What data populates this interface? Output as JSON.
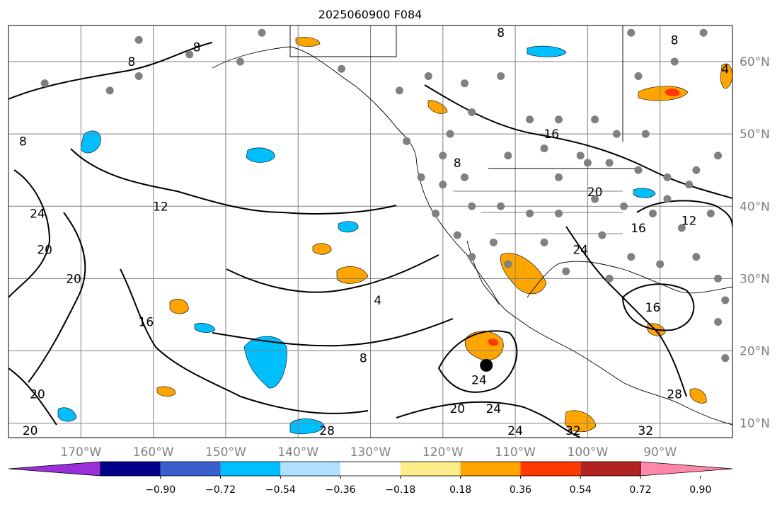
{
  "title": "2025060900 F084",
  "map": {
    "lon_range": [
      -180,
      -80
    ],
    "lat_range": [
      8,
      65
    ],
    "gridlines": true,
    "lon_ticks": [
      {
        "lon": -170,
        "label": "170°W"
      },
      {
        "lon": -160,
        "label": "160°W"
      },
      {
        "lon": -150,
        "label": "150°W"
      },
      {
        "lon": -140,
        "label": "140°W"
      },
      {
        "lon": -130,
        "label": "130°W"
      },
      {
        "lon": -120,
        "label": "120°W"
      },
      {
        "lon": -110,
        "label": "110°W"
      },
      {
        "lon": -100,
        "label": "100°W"
      },
      {
        "lon": -90,
        "label": "90°W"
      }
    ],
    "lat_ticks": [
      {
        "lat": 60,
        "label": "60°N"
      },
      {
        "lat": 50,
        "label": "50°N"
      },
      {
        "lat": 40,
        "label": "40°N"
      },
      {
        "lat": 30,
        "label": "30°N"
      },
      {
        "lat": 20,
        "label": "20°N"
      },
      {
        "lat": 10,
        "label": "10°N"
      }
    ],
    "contour_labels": [
      {
        "text": "8",
        "lon": -154,
        "lat": 62
      },
      {
        "text": "8",
        "lon": -163,
        "lat": 60
      },
      {
        "text": "8",
        "lon": -178,
        "lat": 49
      },
      {
        "text": "12",
        "lon": -159,
        "lat": 40
      },
      {
        "text": "24",
        "lon": -176,
        "lat": 39
      },
      {
        "text": "20",
        "lon": -175,
        "lat": 34
      },
      {
        "text": "20",
        "lon": -171,
        "lat": 30
      },
      {
        "text": "16",
        "lon": -161,
        "lat": 24
      },
      {
        "text": "20",
        "lon": -176,
        "lat": 14
      },
      {
        "text": "20",
        "lon": -177,
        "lat": 9
      },
      {
        "text": "4",
        "lon": -129,
        "lat": 27
      },
      {
        "text": "8",
        "lon": -131,
        "lat": 19
      },
      {
        "text": "8",
        "lon": -118,
        "lat": 46
      },
      {
        "text": "8",
        "lon": -112,
        "lat": 64
      },
      {
        "text": "8",
        "lon": -88,
        "lat": 63
      },
      {
        "text": "4",
        "lon": -81,
        "lat": 59
      },
      {
        "text": "16",
        "lon": -105,
        "lat": 50
      },
      {
        "text": "20",
        "lon": -99,
        "lat": 42
      },
      {
        "text": "12",
        "lon": -86,
        "lat": 38
      },
      {
        "text": "16",
        "lon": -93,
        "lat": 37
      },
      {
        "text": "24",
        "lon": -101,
        "lat": 34
      },
      {
        "text": "16",
        "lon": -91,
        "lat": 26
      },
      {
        "text": "24",
        "lon": -115,
        "lat": 16
      },
      {
        "text": "20",
        "lon": -118,
        "lat": 12
      },
      {
        "text": "24",
        "lon": -113,
        "lat": 12
      },
      {
        "text": "24",
        "lon": -110,
        "lat": 9
      },
      {
        "text": "28",
        "lon": -136,
        "lat": 9
      },
      {
        "text": "32",
        "lon": -102,
        "lat": 9
      },
      {
        "text": "32",
        "lon": -92,
        "lat": 9
      },
      {
        "text": "28",
        "lon": -88,
        "lat": 14
      }
    ],
    "storm_marker": {
      "lon": -114,
      "lat": 18
    },
    "observation_points": [
      {
        "lon": -145,
        "lat": 64
      },
      {
        "lon": -162,
        "lat": 63
      },
      {
        "lon": -175,
        "lat": 57
      },
      {
        "lon": -162,
        "lat": 58
      },
      {
        "lon": -155,
        "lat": 61
      },
      {
        "lon": -166,
        "lat": 56
      },
      {
        "lon": -148,
        "lat": 60
      },
      {
        "lon": -134,
        "lat": 59
      },
      {
        "lon": -122,
        "lat": 58
      },
      {
        "lon": -126,
        "lat": 56
      },
      {
        "lon": -117,
        "lat": 57
      },
      {
        "lon": -112,
        "lat": 58
      },
      {
        "lon": -116,
        "lat": 53
      },
      {
        "lon": -108,
        "lat": 52
      },
      {
        "lon": -104,
        "lat": 52
      },
      {
        "lon": -99,
        "lat": 52
      },
      {
        "lon": -96,
        "lat": 50
      },
      {
        "lon": -92,
        "lat": 50
      },
      {
        "lon": -88,
        "lat": 60
      },
      {
        "lon": -84,
        "lat": 64
      },
      {
        "lon": -94,
        "lat": 64
      },
      {
        "lon": -93,
        "lat": 58
      },
      {
        "lon": -119,
        "lat": 50
      },
      {
        "lon": -125,
        "lat": 49
      },
      {
        "lon": -120,
        "lat": 47
      },
      {
        "lon": -123,
        "lat": 44
      },
      {
        "lon": -117,
        "lat": 44
      },
      {
        "lon": -111,
        "lat": 47
      },
      {
        "lon": -106,
        "lat": 48
      },
      {
        "lon": -101,
        "lat": 47
      },
      {
        "lon": -97,
        "lat": 46
      },
      {
        "lon": -93,
        "lat": 45
      },
      {
        "lon": -89,
        "lat": 44
      },
      {
        "lon": -85,
        "lat": 45
      },
      {
        "lon": -82,
        "lat": 47
      },
      {
        "lon": -121,
        "lat": 39
      },
      {
        "lon": -116,
        "lat": 40
      },
      {
        "lon": -112,
        "lat": 40
      },
      {
        "lon": -108,
        "lat": 39
      },
      {
        "lon": -104,
        "lat": 39
      },
      {
        "lon": -99,
        "lat": 41
      },
      {
        "lon": -95,
        "lat": 40
      },
      {
        "lon": -91,
        "lat": 39
      },
      {
        "lon": -87,
        "lat": 37
      },
      {
        "lon": -83,
        "lat": 39
      },
      {
        "lon": -118,
        "lat": 36
      },
      {
        "lon": -113,
        "lat": 35
      },
      {
        "lon": -106,
        "lat": 35
      },
      {
        "lon": -98,
        "lat": 36
      },
      {
        "lon": -94,
        "lat": 33
      },
      {
        "lon": -90,
        "lat": 32
      },
      {
        "lon": -85,
        "lat": 33
      },
      {
        "lon": -97,
        "lat": 30
      },
      {
        "lon": -103,
        "lat": 31
      },
      {
        "lon": -111,
        "lat": 32
      },
      {
        "lon": -116,
        "lat": 33
      },
      {
        "lon": -82,
        "lat": 30
      },
      {
        "lon": -81,
        "lat": 27
      },
      {
        "lon": -82,
        "lat": 24
      },
      {
        "lon": -81,
        "lat": 19
      },
      {
        "lon": -120,
        "lat": 43
      },
      {
        "lon": -104,
        "lat": 44
      },
      {
        "lon": -100,
        "lat": 46
      },
      {
        "lon": -89,
        "lat": 41
      },
      {
        "lon": -86,
        "lat": 43
      }
    ]
  },
  "colorbar": {
    "tick_labels": [
      "−0.90",
      "−0.72",
      "−0.54",
      "−0.36",
      "−0.18",
      "0.18",
      "0.36",
      "0.54",
      "0.72",
      "0.90"
    ],
    "segment_colors": [
      "#9b30d9",
      "#00008b",
      "#3a5fcd",
      "#00bfff",
      "#b0e2ff",
      "#ffffff",
      "#ffec8b",
      "#ffa500",
      "#ff3800",
      "#b22222",
      "#ff88aa"
    ]
  }
}
